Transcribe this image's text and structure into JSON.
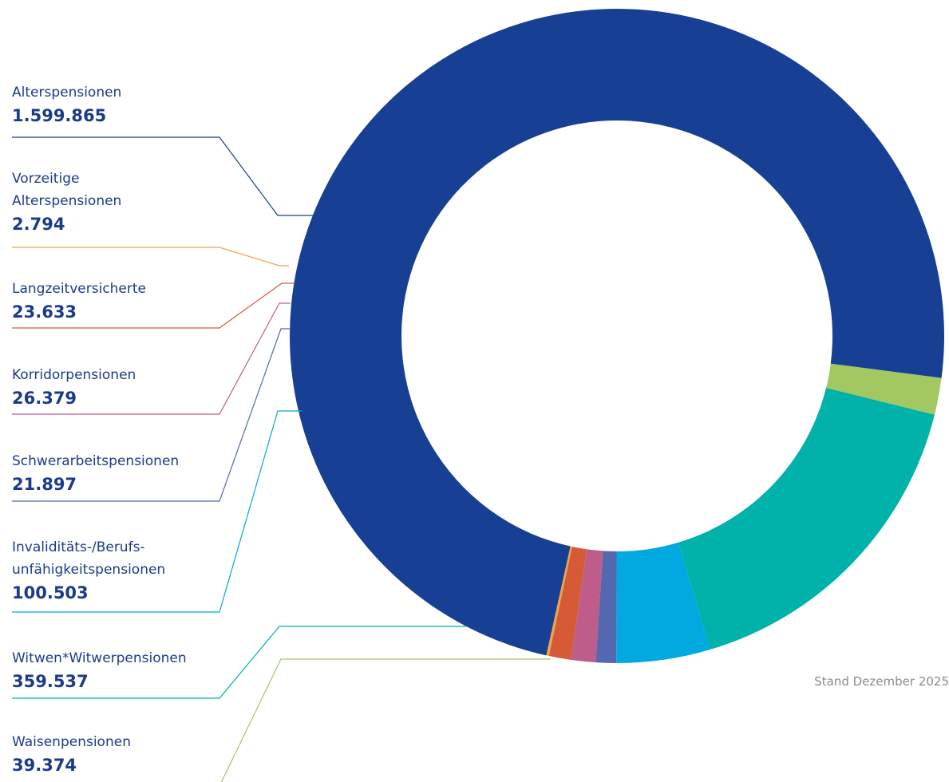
{
  "chart_data": {
    "type": "pie",
    "subtype": "donut",
    "title": "",
    "note": "Stand Dezember 2025",
    "series": [
      {
        "name": "Alterspensionen",
        "label_lines": "Alterspensionen",
        "value_label": "1.599.865",
        "value": 1599865,
        "color": "#173f93"
      },
      {
        "name": "Vorzeitige Alterspensionen",
        "label_lines": "Vorzeitige\nAlterspensionen",
        "value_label": "2.794",
        "value": 2794,
        "color": "#f0a54a"
      },
      {
        "name": "Langzeitversicherte",
        "label_lines": "Langzeitversicherte",
        "value_label": "23.633",
        "value": 23633,
        "color": "#d65a35"
      },
      {
        "name": "Korridorpensionen",
        "label_lines": "Korridorpensionen",
        "value_label": "26.379",
        "value": 26379,
        "color": "#be5c8a"
      },
      {
        "name": "Schwerarbeitspensionen",
        "label_lines": "Schwerarbeitspensionen",
        "value_label": "21.897",
        "value": 21897,
        "color": "#5468b0"
      },
      {
        "name": "Invaliditäts-/Berufsunfähigkeitspensionen",
        "label_lines": "Invaliditäts-/Berufs-\nunfähigkeitspensionen",
        "value_label": "100.503",
        "value": 100503,
        "color": "#02a8e0"
      },
      {
        "name": "Witwen*Witwerpensionen",
        "label_lines": "Witwen*Witwerpensionen",
        "value_label": "359.537",
        "value": 359537,
        "color": "#00b2a9"
      },
      {
        "name": "Waisenpensionen",
        "label_lines": "Waisenpensionen",
        "value_label": "39.374",
        "value": 39374,
        "color": "#a3c862"
      }
    ]
  }
}
